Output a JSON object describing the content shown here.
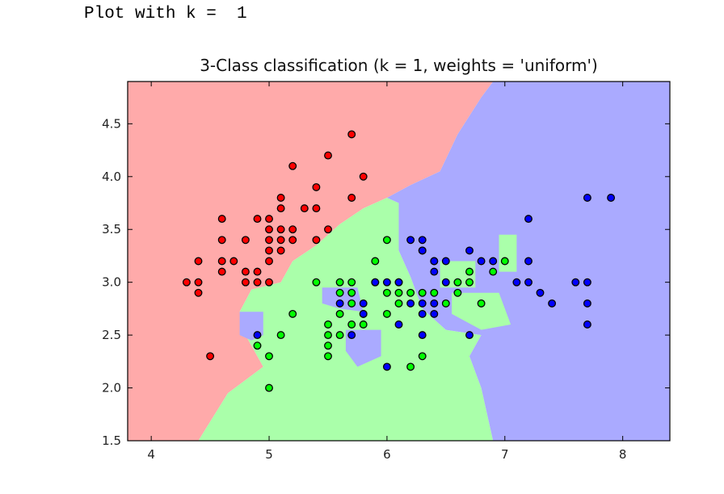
{
  "output_text": "Plot with k =  1",
  "chart_data": {
    "type": "scatter",
    "title": "3-Class classification (k = 1, weights = 'uniform')",
    "xlabel": "",
    "ylabel": "",
    "xlim": [
      3.8,
      8.4
    ],
    "ylim": [
      1.5,
      4.9
    ],
    "xticks": [
      4,
      5,
      6,
      7,
      8
    ],
    "yticks": [
      1.5,
      2.0,
      2.5,
      3.0,
      3.5,
      4.0,
      4.5
    ],
    "xtick_labels": [
      "4",
      "5",
      "6",
      "7",
      "8"
    ],
    "ytick_labels": [
      "1.5",
      "2.0",
      "2.5",
      "3.0",
      "3.5",
      "4.0",
      "4.5"
    ],
    "grid": false,
    "legend": false,
    "colors": {
      "region_0": "#ffaaaa",
      "region_1": "#aaffaa",
      "region_2": "#aaaaff",
      "point_0": "#ff0000",
      "point_1": "#00ff00",
      "point_2": "#0000ff"
    },
    "decision_regions": [
      {
        "class": 0,
        "polygon": [
          [
            3.8,
            4.9
          ],
          [
            6.9,
            4.9
          ],
          [
            6.8,
            4.75
          ],
          [
            6.6,
            4.4
          ],
          [
            6.45,
            4.05
          ],
          [
            6.2,
            3.92
          ],
          [
            6.0,
            3.8
          ],
          [
            5.8,
            3.7
          ],
          [
            5.6,
            3.55
          ],
          [
            5.4,
            3.35
          ],
          [
            5.2,
            3.2
          ],
          [
            5.1,
            3.0
          ],
          [
            4.85,
            2.93
          ],
          [
            4.75,
            2.72
          ],
          [
            4.8,
            2.5
          ],
          [
            4.95,
            2.2
          ],
          [
            4.65,
            1.95
          ],
          [
            4.4,
            1.5
          ],
          [
            3.8,
            1.5
          ]
        ]
      },
      {
        "class": 1,
        "polygon": [
          [
            4.4,
            1.5
          ],
          [
            4.65,
            1.95
          ],
          [
            4.95,
            2.2
          ],
          [
            4.8,
            2.5
          ],
          [
            4.75,
            2.72
          ],
          [
            4.85,
            2.93
          ],
          [
            5.1,
            3.0
          ],
          [
            5.2,
            3.2
          ],
          [
            5.4,
            3.35
          ],
          [
            5.6,
            3.55
          ],
          [
            5.8,
            3.7
          ],
          [
            6.0,
            3.8
          ],
          [
            6.1,
            3.75
          ],
          [
            6.1,
            3.3
          ],
          [
            6.2,
            3.05
          ],
          [
            6.3,
            2.75
          ],
          [
            6.5,
            2.55
          ],
          [
            6.8,
            2.5
          ],
          [
            6.7,
            2.3
          ],
          [
            6.8,
            2.0
          ],
          [
            6.9,
            1.5
          ]
        ]
      },
      {
        "class": 2,
        "polygon": [
          [
            6.9,
            4.9
          ],
          [
            8.4,
            4.9
          ],
          [
            8.4,
            1.5
          ],
          [
            6.9,
            1.5
          ],
          [
            6.8,
            2.0
          ],
          [
            6.7,
            2.3
          ],
          [
            6.8,
            2.5
          ],
          [
            6.5,
            2.55
          ],
          [
            6.3,
            2.75
          ],
          [
            6.2,
            3.05
          ],
          [
            6.1,
            3.3
          ],
          [
            6.1,
            3.75
          ],
          [
            6.0,
            3.8
          ],
          [
            6.2,
            3.92
          ],
          [
            6.45,
            4.05
          ],
          [
            6.6,
            4.4
          ],
          [
            6.8,
            4.75
          ]
        ]
      },
      {
        "class": 2,
        "polygon": [
          [
            4.75,
            2.5
          ],
          [
            4.75,
            2.72
          ],
          [
            4.95,
            2.72
          ],
          [
            4.95,
            2.5
          ],
          [
            4.85,
            2.45
          ]
        ]
      },
      {
        "class": 2,
        "polygon": [
          [
            5.45,
            2.95
          ],
          [
            5.75,
            2.95
          ],
          [
            5.8,
            2.72
          ],
          [
            5.6,
            2.75
          ],
          [
            5.45,
            2.8
          ]
        ]
      },
      {
        "class": 2,
        "polygon": [
          [
            5.65,
            2.55
          ],
          [
            5.95,
            2.55
          ],
          [
            5.95,
            2.3
          ],
          [
            5.75,
            2.2
          ],
          [
            5.65,
            2.35
          ]
        ]
      },
      {
        "class": 1,
        "polygon": [
          [
            6.45,
            3.2
          ],
          [
            6.75,
            3.2
          ],
          [
            6.75,
            2.95
          ],
          [
            6.45,
            2.95
          ]
        ]
      },
      {
        "class": 1,
        "polygon": [
          [
            6.95,
            3.45
          ],
          [
            7.1,
            3.45
          ],
          [
            7.1,
            3.1
          ],
          [
            6.95,
            3.1
          ]
        ]
      },
      {
        "class": 1,
        "polygon": [
          [
            6.55,
            2.9
          ],
          [
            6.95,
            2.9
          ],
          [
            7.05,
            2.6
          ],
          [
            6.8,
            2.55
          ],
          [
            6.55,
            2.7
          ]
        ]
      }
    ],
    "series": [
      {
        "class": 0,
        "points": [
          [
            4.3,
            3.0
          ],
          [
            4.4,
            2.9
          ],
          [
            4.4,
            3.0
          ],
          [
            4.4,
            3.2
          ],
          [
            4.5,
            2.3
          ],
          [
            4.6,
            3.1
          ],
          [
            4.6,
            3.2
          ],
          [
            4.6,
            3.4
          ],
          [
            4.6,
            3.6
          ],
          [
            4.7,
            3.2
          ],
          [
            4.8,
            3.0
          ],
          [
            4.8,
            3.1
          ],
          [
            4.8,
            3.4
          ],
          [
            4.9,
            3.0
          ],
          [
            4.9,
            3.1
          ],
          [
            4.9,
            3.6
          ],
          [
            5.0,
            3.0
          ],
          [
            5.0,
            3.2
          ],
          [
            5.0,
            3.3
          ],
          [
            5.0,
            3.4
          ],
          [
            5.0,
            3.5
          ],
          [
            5.0,
            3.6
          ],
          [
            5.1,
            3.3
          ],
          [
            5.1,
            3.4
          ],
          [
            5.1,
            3.5
          ],
          [
            5.1,
            3.7
          ],
          [
            5.1,
            3.8
          ],
          [
            5.2,
            3.4
          ],
          [
            5.2,
            3.5
          ],
          [
            5.2,
            4.1
          ],
          [
            5.3,
            3.7
          ],
          [
            5.4,
            3.4
          ],
          [
            5.4,
            3.7
          ],
          [
            5.4,
            3.9
          ],
          [
            5.5,
            3.5
          ],
          [
            5.5,
            4.2
          ],
          [
            5.7,
            3.8
          ],
          [
            5.7,
            4.4
          ],
          [
            5.8,
            4.0
          ]
        ]
      },
      {
        "class": 1,
        "points": [
          [
            4.9,
            2.4
          ],
          [
            5.0,
            2.0
          ],
          [
            5.0,
            2.3
          ],
          [
            5.1,
            2.5
          ],
          [
            5.2,
            2.7
          ],
          [
            5.4,
            3.0
          ],
          [
            5.5,
            2.3
          ],
          [
            5.5,
            2.4
          ],
          [
            5.5,
            2.5
          ],
          [
            5.5,
            2.6
          ],
          [
            5.6,
            2.5
          ],
          [
            5.6,
            2.7
          ],
          [
            5.6,
            2.9
          ],
          [
            5.6,
            3.0
          ],
          [
            5.7,
            2.6
          ],
          [
            5.7,
            2.8
          ],
          [
            5.7,
            2.9
          ],
          [
            5.7,
            3.0
          ],
          [
            5.8,
            2.6
          ],
          [
            5.8,
            2.7
          ],
          [
            5.9,
            3.0
          ],
          [
            5.9,
            3.2
          ],
          [
            6.0,
            2.7
          ],
          [
            6.0,
            2.9
          ],
          [
            6.0,
            3.4
          ],
          [
            6.1,
            2.8
          ],
          [
            6.1,
            2.9
          ],
          [
            6.1,
            3.0
          ],
          [
            6.2,
            2.2
          ],
          [
            6.2,
            2.9
          ],
          [
            6.3,
            2.3
          ],
          [
            6.3,
            2.9
          ],
          [
            6.3,
            3.3
          ],
          [
            6.4,
            2.9
          ],
          [
            6.4,
            3.2
          ],
          [
            6.5,
            2.8
          ],
          [
            6.6,
            2.9
          ],
          [
            6.6,
            3.0
          ],
          [
            6.7,
            3.0
          ],
          [
            6.7,
            3.1
          ],
          [
            6.8,
            2.8
          ],
          [
            6.9,
            3.1
          ],
          [
            7.0,
            3.2
          ]
        ]
      },
      {
        "class": 2,
        "points": [
          [
            4.9,
            2.5
          ],
          [
            5.6,
            2.8
          ],
          [
            5.7,
            2.5
          ],
          [
            5.8,
            2.7
          ],
          [
            5.8,
            2.8
          ],
          [
            5.9,
            3.0
          ],
          [
            6.0,
            2.2
          ],
          [
            6.0,
            3.0
          ],
          [
            6.1,
            2.6
          ],
          [
            6.1,
            3.0
          ],
          [
            6.2,
            2.8
          ],
          [
            6.2,
            3.4
          ],
          [
            6.3,
            2.5
          ],
          [
            6.3,
            2.7
          ],
          [
            6.3,
            2.8
          ],
          [
            6.3,
            3.3
          ],
          [
            6.3,
            3.4
          ],
          [
            6.4,
            2.7
          ],
          [
            6.4,
            2.8
          ],
          [
            6.4,
            3.1
          ],
          [
            6.4,
            3.2
          ],
          [
            6.5,
            3.0
          ],
          [
            6.5,
            3.2
          ],
          [
            6.7,
            2.5
          ],
          [
            6.7,
            3.3
          ],
          [
            6.8,
            3.2
          ],
          [
            6.9,
            3.2
          ],
          [
            7.1,
            3.0
          ],
          [
            7.2,
            3.0
          ],
          [
            7.2,
            3.2
          ],
          [
            7.2,
            3.6
          ],
          [
            7.3,
            2.9
          ],
          [
            7.4,
            2.8
          ],
          [
            7.6,
            3.0
          ],
          [
            7.7,
            2.6
          ],
          [
            7.7,
            2.8
          ],
          [
            7.7,
            3.0
          ],
          [
            7.7,
            3.8
          ],
          [
            7.9,
            3.8
          ]
        ]
      }
    ]
  }
}
